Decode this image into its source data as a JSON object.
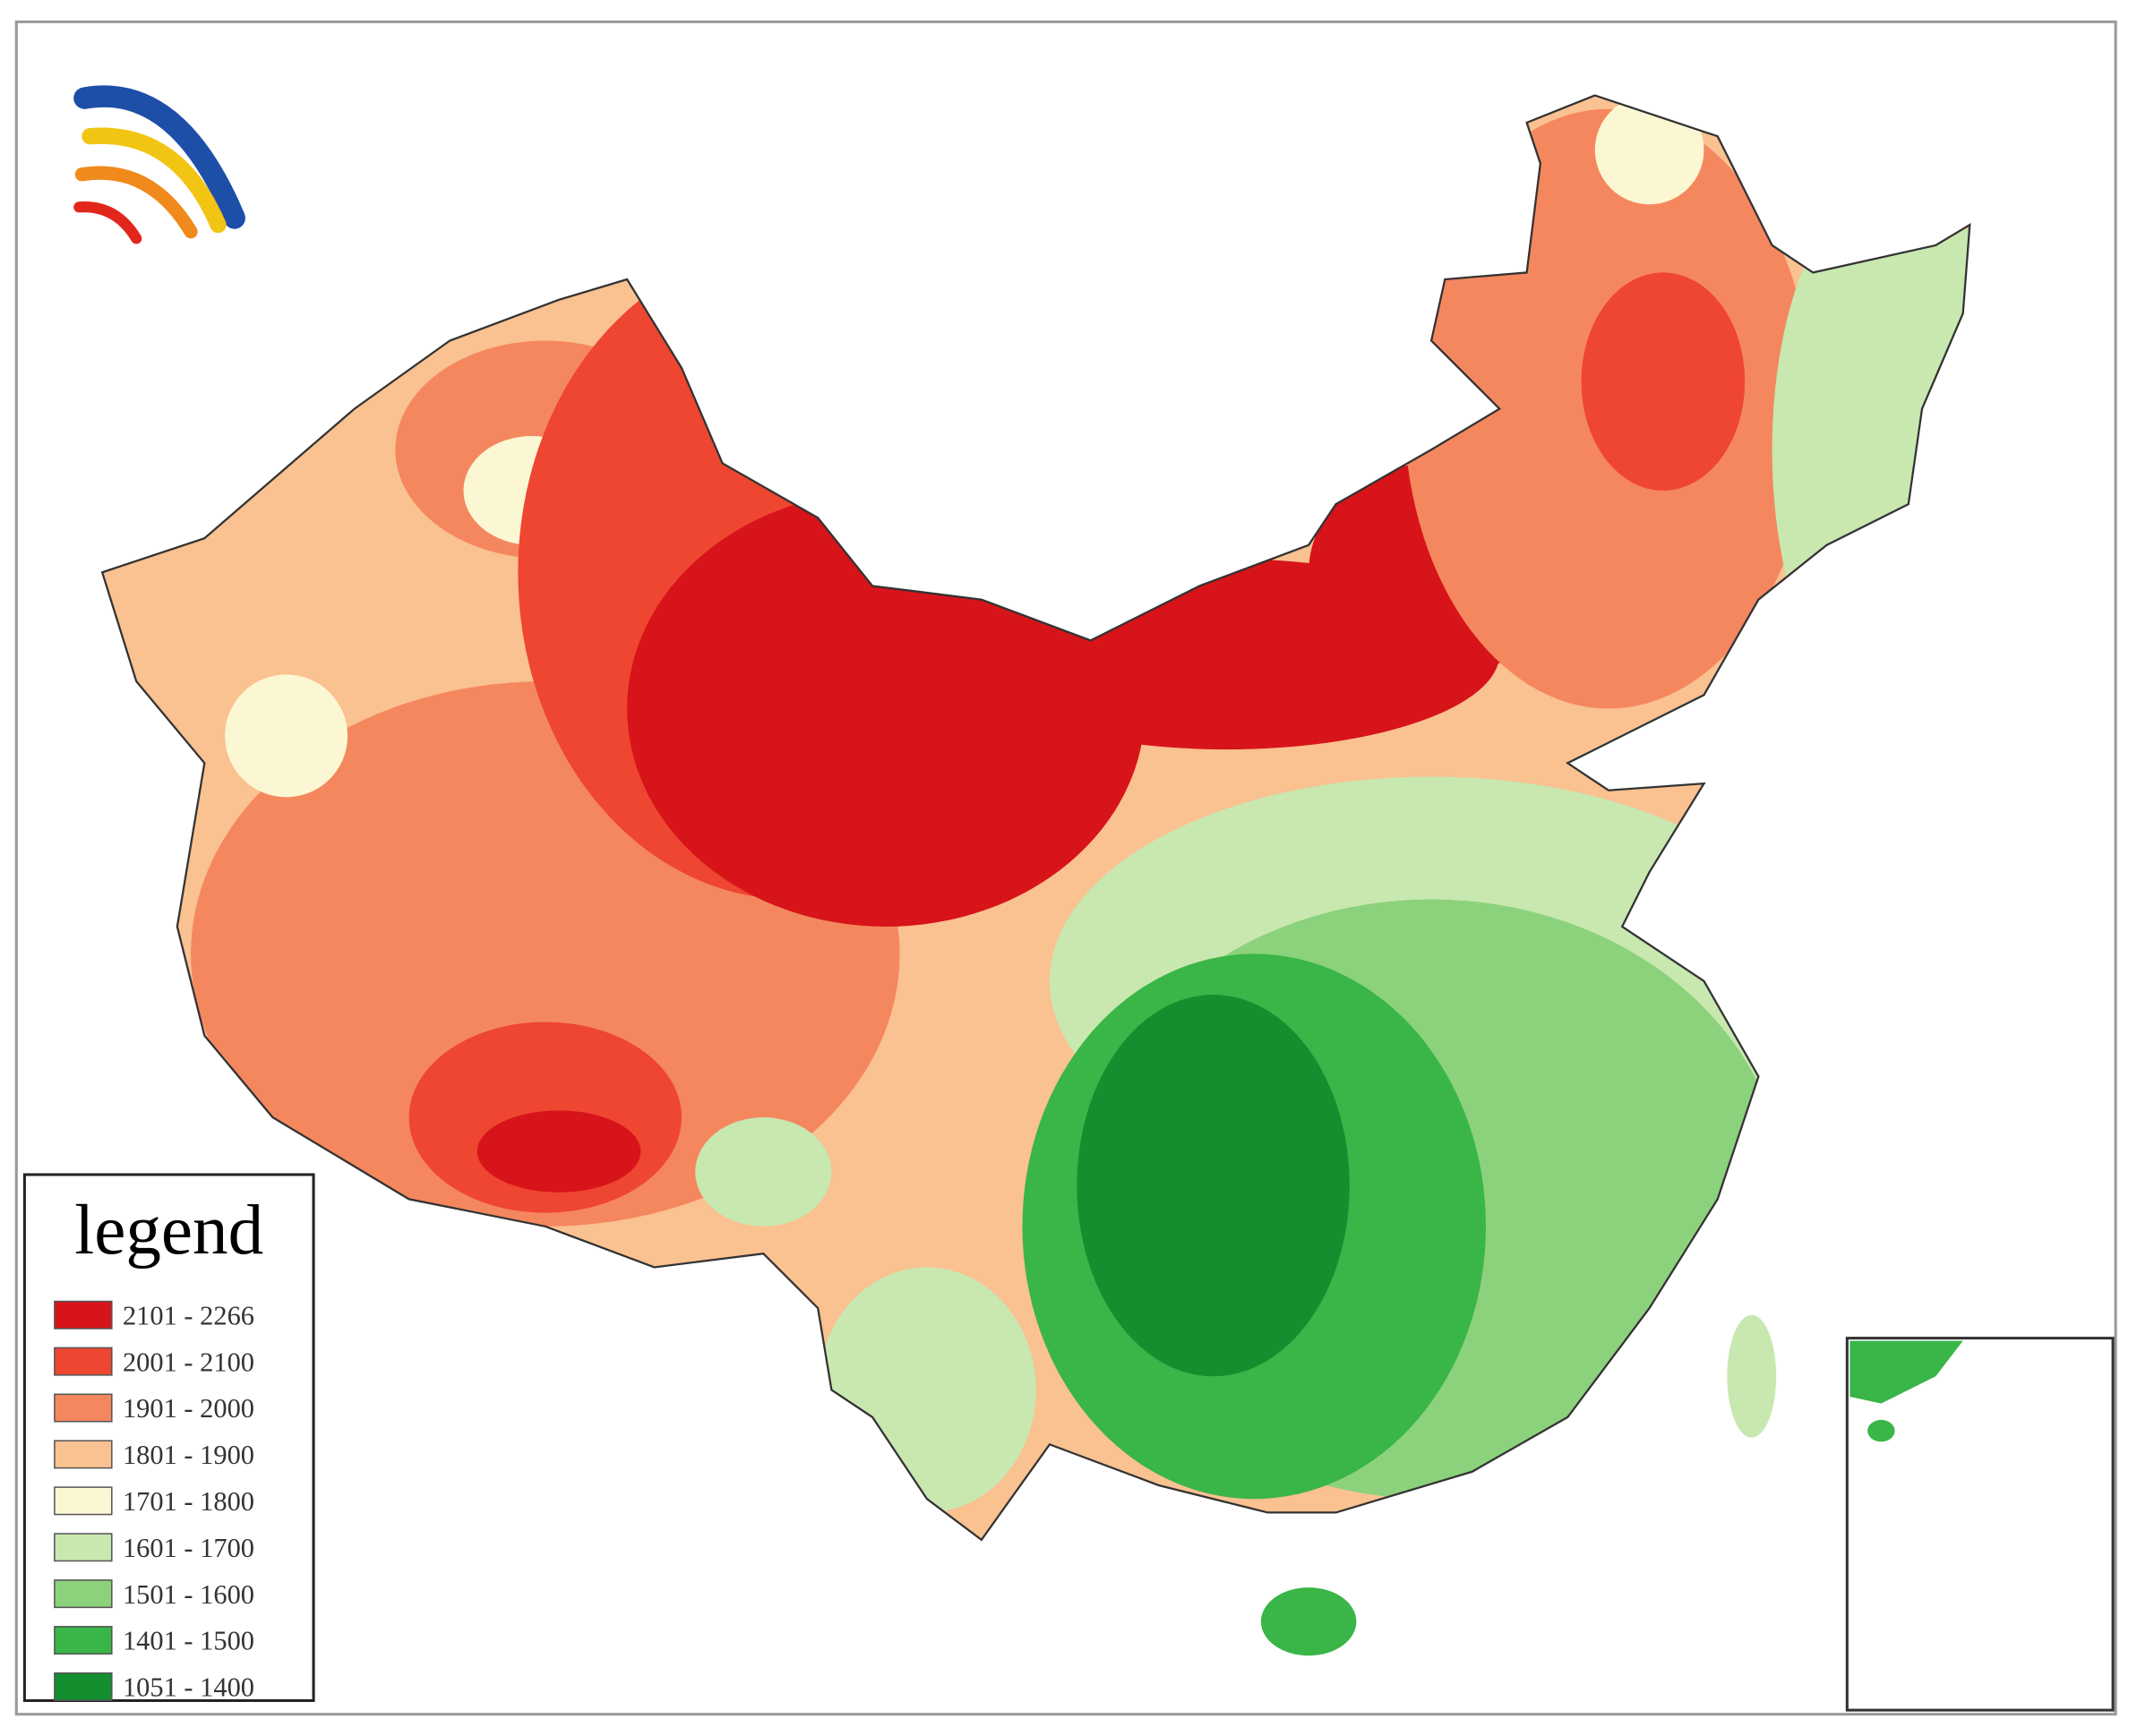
{
  "legend": {
    "title": "legend",
    "items": [
      {
        "label": "2101 - 2266",
        "color": "#d7141a"
      },
      {
        "label": "2001 - 2100",
        "color": "#ee4630"
      },
      {
        "label": "1901 - 2000",
        "color": "#f5875f"
      },
      {
        "label": "1801 - 1900",
        "color": "#fac191"
      },
      {
        "label": "1701 - 1800",
        "color": "#fbf7d2"
      },
      {
        "label": "1601 - 1700",
        "color": "#c8e8b0"
      },
      {
        "label": "1501 - 1600",
        "color": "#8cd27c"
      },
      {
        "label": "1401 - 1500",
        "color": "#3ab547"
      },
      {
        "label": "1051 - 1400",
        "color": "#138f2f"
      }
    ]
  }
}
